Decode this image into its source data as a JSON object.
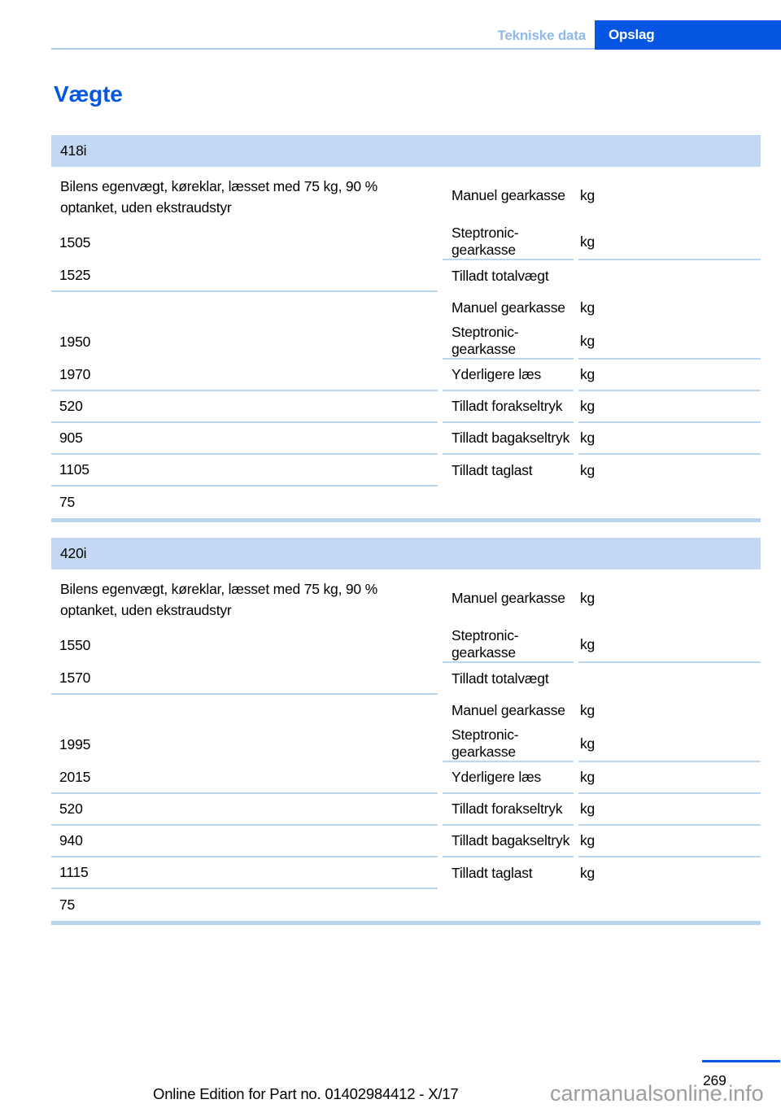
{
  "header": {
    "section_label": "Tekniske data",
    "chapter_label": "Opslag"
  },
  "title": "Vægte",
  "tables": [
    {
      "model": "418i",
      "description": "Bilens egenvægt, køreklar, læsset med 75 kg, 90 % optanket, uden ekstraudstyr",
      "rows": [
        {
          "label": "Manuel gearkasse",
          "unit": "kg",
          "value": "1505"
        },
        {
          "label": "Steptronic-gearkasse",
          "unit": "kg",
          "value": "1525"
        },
        {
          "label": "Tilladt totalvægt"
        },
        {
          "label": "Manuel gearkasse",
          "unit": "kg",
          "value": "1950"
        },
        {
          "label": "Steptronic-gearkasse",
          "unit": "kg",
          "value": "1970"
        },
        {
          "label": "Yderligere læs",
          "unit": "kg",
          "value": "520"
        },
        {
          "label": "Tilladt forakseltryk",
          "unit": "kg",
          "value": "905"
        },
        {
          "label": "Tilladt bagakseltryk",
          "unit": "kg",
          "value": "1105"
        },
        {
          "label": "Tilladt taglast",
          "unit": "kg",
          "value": "75"
        }
      ]
    },
    {
      "model": "420i",
      "description": "Bilens egenvægt, køreklar, læsset med 75 kg, 90 % optanket, uden ekstraudstyr",
      "rows": [
        {
          "label": "Manuel gearkasse",
          "unit": "kg",
          "value": "1550"
        },
        {
          "label": "Steptronic-gearkasse",
          "unit": "kg",
          "value": "1570"
        },
        {
          "label": "Tilladt totalvægt"
        },
        {
          "label": "Manuel gearkasse",
          "unit": "kg",
          "value": "1995"
        },
        {
          "label": "Steptronic-gearkasse",
          "unit": "kg",
          "value": "2015"
        },
        {
          "label": "Yderligere læs",
          "unit": "kg",
          "value": "520"
        },
        {
          "label": "Tilladt forakseltryk",
          "unit": "kg",
          "value": "940"
        },
        {
          "label": "Tilladt bagakseltryk",
          "unit": "kg",
          "value": "1115"
        },
        {
          "label": "Tilladt taglast",
          "unit": "kg",
          "value": "75"
        }
      ]
    }
  ],
  "footer": {
    "page_number": "269",
    "edition_note": "Online Edition for Part no. 01402984412 - X/17",
    "watermark": "carmanualsonline.info"
  },
  "colors": {
    "accent_blue": "#0756e3",
    "breadcrumb_blue": "#90b9e9",
    "table_header_bg": "#c3d9f3",
    "divider_blue": "#bdd7f1",
    "watermark_gray": "#9d9d9d"
  }
}
